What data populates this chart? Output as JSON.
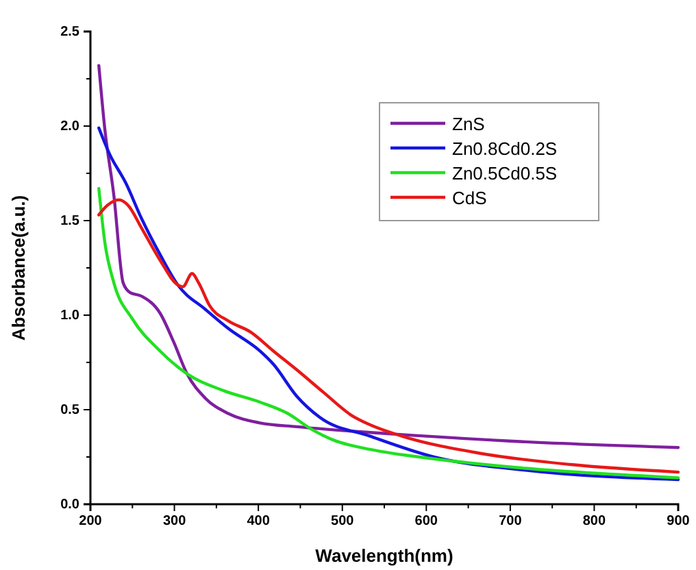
{
  "chart_data": {
    "type": "line",
    "xlabel": "Wavelength(nm)",
    "ylabel": "Absorbance(a.u.)",
    "xlim": [
      200,
      900
    ],
    "xticks": [
      200,
      300,
      400,
      500,
      600,
      700,
      800,
      900
    ],
    "ylim": [
      0,
      2.5
    ],
    "yticks": [
      {
        "value": 0,
        "label": "0.0"
      },
      {
        "value": 0.5,
        "label": "0.5"
      },
      {
        "value": 1,
        "label": "1.0"
      },
      {
        "value": 1.5,
        "label": "1.5"
      },
      {
        "value": 2,
        "label": "2.0"
      },
      {
        "value": 2.5,
        "label": "2.5"
      }
    ],
    "legend": "top right",
    "grid": false,
    "marker": "none",
    "line_style": "solid",
    "series": [
      {
        "name": "ZnS",
        "color": "#7f1f9f",
        "x": [
          210,
          217,
          228,
          239,
          247,
          261,
          283,
          299,
          315,
          337,
          364,
          402,
          446,
          500,
          565,
          718,
          900
        ],
        "values": [
          2.32,
          1.99,
          1.63,
          1.17,
          1.12,
          1.1,
          1.01,
          0.86,
          0.69,
          0.56,
          0.48,
          0.43,
          0.41,
          0.39,
          0.37,
          0.33,
          0.3
        ]
      },
      {
        "name": "Zn0.8Cd0.2S",
        "color": "#1515e0",
        "x": [
          210,
          223,
          242,
          261,
          283,
          304,
          337,
          364,
          402,
          418,
          446,
          473,
          533,
          609,
          718,
          900
        ],
        "values": [
          1.99,
          1.85,
          1.7,
          1.51,
          1.32,
          1.16,
          1.03,
          0.93,
          0.81,
          0.74,
          0.57,
          0.46,
          0.36,
          0.25,
          0.18,
          0.13
        ]
      },
      {
        "name": "Zn0.5Cd0.5S",
        "color": "#22e022",
        "x": [
          210,
          217,
          228,
          250,
          283,
          315,
          359,
          402,
          435,
          462,
          489,
          533,
          609,
          718,
          900
        ],
        "values": [
          1.67,
          1.39,
          1.17,
          0.98,
          0.81,
          0.69,
          0.6,
          0.54,
          0.48,
          0.4,
          0.34,
          0.29,
          0.24,
          0.19,
          0.14
        ]
      },
      {
        "name": "CdS",
        "color": "#e81818",
        "x": [
          210,
          220,
          234,
          245,
          261,
          283,
          304,
          310,
          321,
          329,
          342,
          364,
          391,
          418,
          446,
          478,
          511,
          533,
          571,
          663,
          772,
          900
        ],
        "values": [
          1.53,
          1.58,
          1.61,
          1.58,
          1.46,
          1.29,
          1.16,
          1.15,
          1.22,
          1.17,
          1.05,
          0.97,
          0.91,
          0.81,
          0.71,
          0.59,
          0.47,
          0.42,
          0.36,
          0.27,
          0.21,
          0.17
        ]
      }
    ]
  }
}
